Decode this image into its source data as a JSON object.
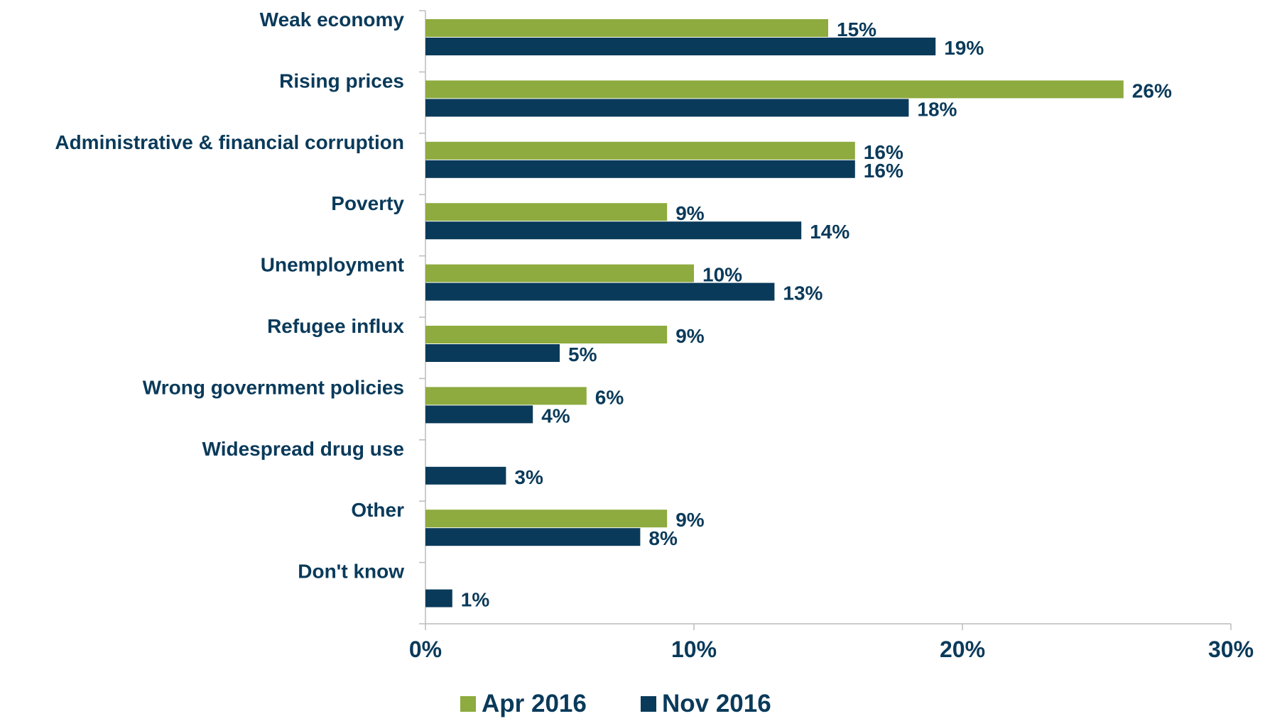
{
  "chart_data": {
    "type": "bar",
    "orientation": "horizontal",
    "categories": [
      "Weak economy",
      "Rising prices",
      "Administrative & financial corruption",
      "Poverty",
      "Unemployment",
      "Refugee influx",
      "Wrong government policies",
      "Widespread drug use",
      "Other",
      "Don't know"
    ],
    "series": [
      {
        "name": "Apr 2016",
        "values": [
          15,
          26,
          16,
          9,
          10,
          9,
          6,
          null,
          9,
          null
        ],
        "labels": [
          "15%",
          "26%",
          "16%",
          "9%",
          "10%",
          "9%",
          "6%",
          "",
          "9%",
          ""
        ]
      },
      {
        "name": "Nov 2016",
        "values": [
          19,
          18,
          16,
          14,
          13,
          5,
          4,
          3,
          8,
          1
        ],
        "labels": [
          "19%",
          "18%",
          "16%",
          "14%",
          "13%",
          "5%",
          "4%",
          "3%",
          "8%",
          "1%"
        ]
      }
    ],
    "xlim": [
      0,
      30
    ],
    "xticks": [
      0,
      10,
      20,
      30
    ],
    "xtick_labels": [
      "0%",
      "10%",
      "20%",
      "30%"
    ],
    "title": "",
    "xlabel": "",
    "ylabel": "",
    "grid": false,
    "legend_position": "bottom",
    "colors": {
      "Apr 2016": "#8dab3e",
      "Nov 2016": "#0a3a5a",
      "text": "#0a3a5a",
      "axis": "#bcbcbc"
    }
  }
}
